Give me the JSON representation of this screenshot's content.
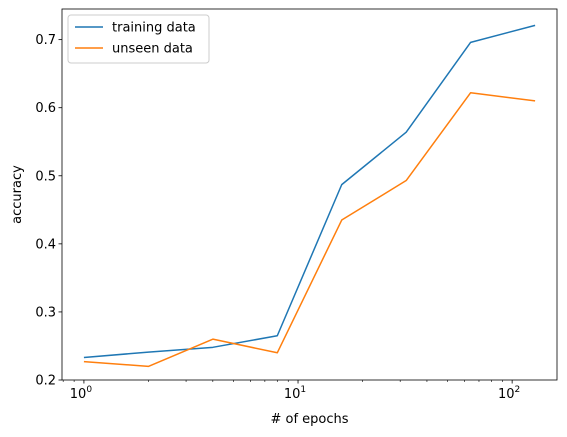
{
  "chart_data": {
    "type": "line",
    "x_scale": "log",
    "x": [
      1,
      2,
      4,
      8,
      16,
      32,
      64,
      128
    ],
    "series": [
      {
        "name": "training data",
        "color": "#1f77b4",
        "values": [
          0.233,
          0.241,
          0.248,
          0.265,
          0.487,
          0.564,
          0.696,
          0.721
        ]
      },
      {
        "name": "unseen data",
        "color": "#ff7f0e",
        "values": [
          0.227,
          0.22,
          0.26,
          0.24,
          0.435,
          0.493,
          0.622,
          0.61
        ]
      }
    ],
    "xlabel": "# of epochs",
    "ylabel": "accuracy",
    "xlim": [
      0.79,
      162
    ],
    "ylim": [
      0.2,
      0.745
    ],
    "x_ticks": [
      {
        "value": 1,
        "base": "10",
        "exp": "0"
      },
      {
        "value": 10,
        "base": "10",
        "exp": "1"
      },
      {
        "value": 100,
        "base": "10",
        "exp": "2"
      }
    ],
    "y_ticks": [
      {
        "value": 0.2,
        "label": "0.2"
      },
      {
        "value": 0.3,
        "label": "0.3"
      },
      {
        "value": 0.4,
        "label": "0.4"
      },
      {
        "value": 0.5,
        "label": "0.5"
      },
      {
        "value": 0.6,
        "label": "0.6"
      },
      {
        "value": 0.7,
        "label": "0.7"
      }
    ],
    "grid": false,
    "legend": "upper-left"
  }
}
